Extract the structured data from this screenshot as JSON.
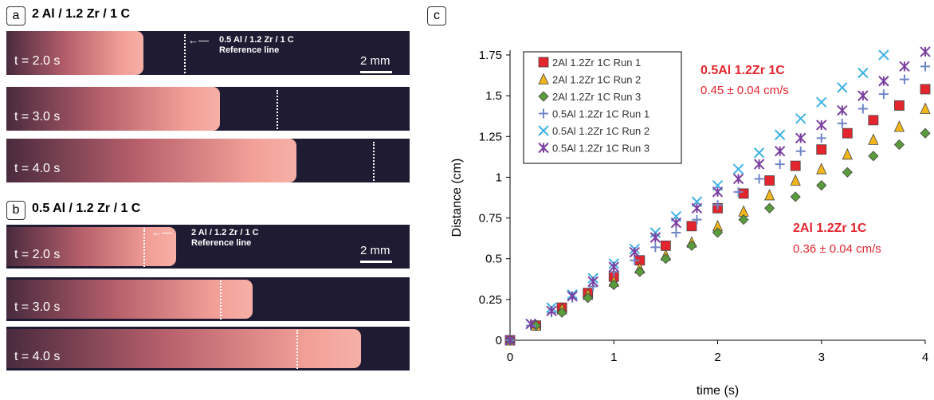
{
  "panels": {
    "a": {
      "badge": "a",
      "title": "2 Al / 1.2 Zr / 1 C",
      "ref_text": [
        "0.5 Al / 1.2 Zr / 1 C",
        "Reference line"
      ],
      "scale": "2 mm",
      "frames": [
        {
          "label": "t = 2.0 s",
          "front": 0.34,
          "ref": 0.44
        },
        {
          "label": "t = 3.0 s",
          "front": 0.53,
          "ref": 0.67
        },
        {
          "label": "t = 4.0 s",
          "front": 0.72,
          "ref": 0.91
        }
      ]
    },
    "b": {
      "badge": "b",
      "title": "0.5 Al / 1.2 Zr / 1 C",
      "ref_text": [
        "2 Al / 1.2 Zr / 1 C",
        "Reference line"
      ],
      "scale": "2 mm",
      "frames": [
        {
          "label": "t = 2.0 s",
          "front": 0.42,
          "ref": 0.34
        },
        {
          "label": "t = 3.0 s",
          "front": 0.61,
          "ref": 0.53
        },
        {
          "label": "t = 4.0 s",
          "front": 0.88,
          "ref": 0.72
        }
      ]
    }
  },
  "chart_data": {
    "type": "scatter",
    "badge": "c",
    "xlabel": "time (s)",
    "ylabel": "Distance (cm)",
    "xlim": [
      0,
      4
    ],
    "ylim": [
      0,
      1.75
    ],
    "xticks": [
      0,
      1,
      2,
      3,
      4
    ],
    "yticks": [
      0,
      0.25,
      0.5,
      0.75,
      1,
      1.25,
      1.5,
      1.75
    ],
    "ytick_labels": [
      "0",
      "0.25",
      "0.5",
      "0.75",
      "1",
      "1.25",
      "1.5",
      "1.75"
    ],
    "grid": false,
    "legend": "top-left",
    "series": [
      {
        "name": "2Al 1.2Zr 1C Run 1",
        "marker": "square",
        "color": "#e3262e",
        "x": [
          0,
          0.25,
          0.5,
          0.75,
          1,
          1.25,
          1.5,
          1.75,
          2,
          2.25,
          2.5,
          2.75,
          3,
          3.25,
          3.5,
          3.75,
          4
        ],
        "y": [
          0,
          0.09,
          0.2,
          0.29,
          0.39,
          0.49,
          0.58,
          0.7,
          0.81,
          0.9,
          0.98,
          1.07,
          1.17,
          1.27,
          1.35,
          1.44,
          1.54
        ]
      },
      {
        "name": "2Al 1.2Zr 1C Run 2",
        "marker": "triangle",
        "color": "#f2b51a",
        "x": [
          0,
          0.25,
          0.5,
          0.75,
          1,
          1.25,
          1.5,
          1.75,
          2,
          2.25,
          2.5,
          2.75,
          3,
          3.25,
          3.5,
          3.75,
          4
        ],
        "y": [
          0,
          0.09,
          0.19,
          0.28,
          0.36,
          0.44,
          0.52,
          0.6,
          0.7,
          0.79,
          0.89,
          0.98,
          1.05,
          1.14,
          1.23,
          1.31,
          1.42
        ]
      },
      {
        "name": "2Al 1.2Zr 1C Run 3",
        "marker": "diamond",
        "color": "#5a9b3c",
        "x": [
          0,
          0.25,
          0.5,
          0.75,
          1,
          1.25,
          1.5,
          1.75,
          2,
          2.25,
          2.5,
          2.75,
          3,
          3.25,
          3.5,
          3.75,
          4
        ],
        "y": [
          0,
          0.09,
          0.17,
          0.26,
          0.34,
          0.42,
          0.5,
          0.58,
          0.66,
          0.74,
          0.81,
          0.88,
          0.95,
          1.03,
          1.13,
          1.2,
          1.27
        ]
      },
      {
        "name": "0.5Al 1.2Zr 1C Run 1",
        "marker": "plus",
        "color": "#6f86c6",
        "x": [
          0,
          0.2,
          0.4,
          0.6,
          0.8,
          1,
          1.2,
          1.4,
          1.6,
          1.8,
          2,
          2.2,
          2.4,
          2.6,
          2.8,
          3,
          3.2,
          3.4,
          3.6,
          3.8,
          4
        ],
        "y": [
          0,
          0.09,
          0.17,
          0.26,
          0.33,
          0.42,
          0.49,
          0.57,
          0.66,
          0.74,
          0.83,
          0.91,
          0.99,
          1.08,
          1.16,
          1.24,
          1.33,
          1.42,
          1.51,
          1.6,
          1.68
        ]
      },
      {
        "name": "0.5Al 1.2Zr 1C Run 2",
        "marker": "x",
        "color": "#3fb2e3",
        "x": [
          0,
          0.2,
          0.4,
          0.6,
          0.8,
          1,
          1.2,
          1.4,
          1.6,
          1.8,
          2,
          2.2,
          2.4,
          2.6,
          2.8,
          3,
          3.2,
          3.4,
          3.6
        ],
        "y": [
          0,
          0.1,
          0.2,
          0.28,
          0.38,
          0.47,
          0.56,
          0.66,
          0.76,
          0.85,
          0.95,
          1.05,
          1.15,
          1.26,
          1.36,
          1.46,
          1.55,
          1.64,
          1.75
        ]
      },
      {
        "name": "0.5Al 1.2Zr 1C Run 3",
        "marker": "star",
        "color": "#7a3fa0",
        "x": [
          0,
          0.2,
          0.4,
          0.6,
          0.8,
          1,
          1.2,
          1.4,
          1.6,
          1.8,
          2,
          2.2,
          2.4,
          2.6,
          2.8,
          3,
          3.2,
          3.4,
          3.6,
          3.8,
          4
        ],
        "y": [
          0,
          0.1,
          0.18,
          0.27,
          0.36,
          0.45,
          0.54,
          0.63,
          0.72,
          0.81,
          0.91,
          0.99,
          1.08,
          1.16,
          1.24,
          1.32,
          1.41,
          1.5,
          1.59,
          1.68,
          1.77
        ]
      }
    ],
    "annotations": [
      {
        "text": "0.5Al 1.2Zr 1C",
        "bold": true,
        "color": "#e3262e"
      },
      {
        "text": "0.45 ± 0.04 cm/s",
        "bold": false,
        "color": "#e3262e"
      },
      {
        "text": "2Al 1.2Zr 1C",
        "bold": true,
        "color": "#e3262e"
      },
      {
        "text": "0.36 ± 0.04 cm/s",
        "bold": false,
        "color": "#e3262e"
      }
    ]
  }
}
